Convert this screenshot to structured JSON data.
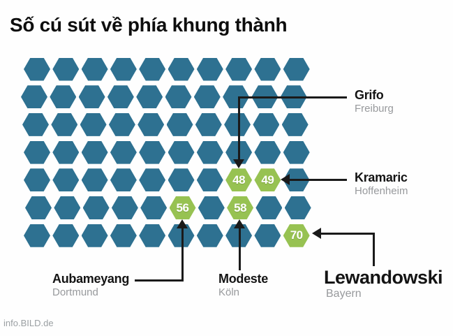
{
  "title": "Số cú sút về phía khung thành",
  "credit": "info.BILD.de",
  "colors": {
    "hex_default": "#2E7191",
    "hex_highlight": "#97C252",
    "line": "#1A1A1A",
    "label_secondary": "#97999C"
  },
  "chart_data": {
    "type": "pictogram",
    "title": "Số cú sút về phía khung thành",
    "unit_shape": "hexagon",
    "grid": {
      "rows": 7,
      "cols": 10,
      "total_units": 70
    },
    "legend_position": "callout-labels",
    "series": [
      {
        "name": "Grifo",
        "team": "Freiburg",
        "value": 48
      },
      {
        "name": "Kramaric",
        "team": "Hoffenheim",
        "value": 49
      },
      {
        "name": "Aubameyang",
        "team": "Dortmund",
        "value": 56
      },
      {
        "name": "Modeste",
        "team": "Köln",
        "value": 58
      },
      {
        "name": "Lewandowski",
        "team": "Bayern",
        "value": 70
      }
    ]
  }
}
